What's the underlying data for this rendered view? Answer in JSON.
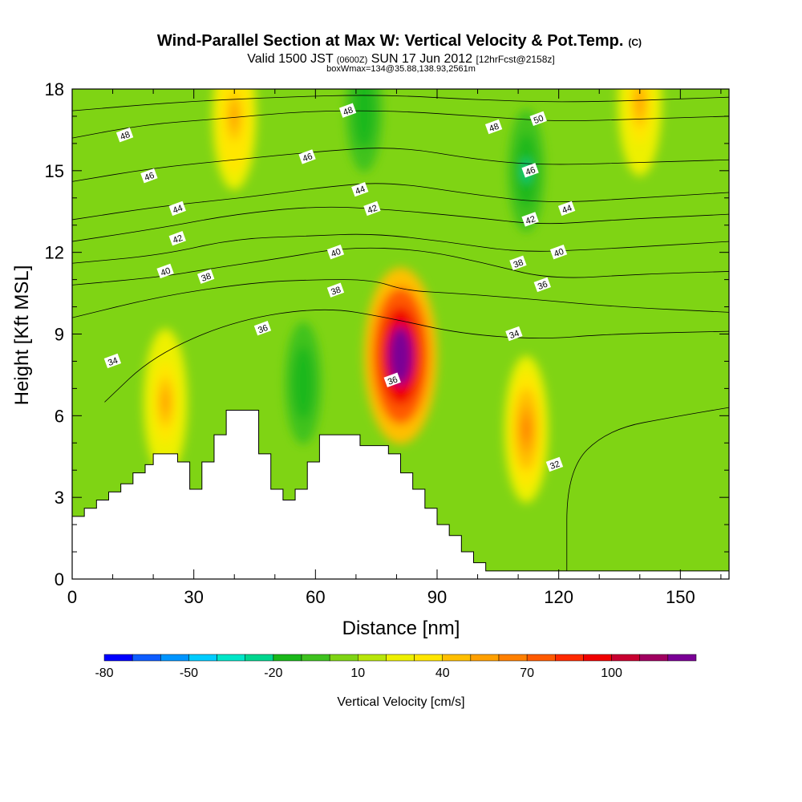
{
  "chart_data": {
    "type": "heatmap",
    "title": "Wind-Parallel Section at Max W: Vertical Velocity & Pot.Temp.",
    "title_mark": "(C)",
    "subtitle_parts": [
      "Valid 1500 JST",
      "(0600Z)",
      "SUN 17 Jun 2012",
      "[12hrFcst@2158z]"
    ],
    "subtitle2": "boxWmax=134@35.88,138.93,2561m",
    "xlabel": "Distance [nm]",
    "ylabel": "Height [Kft MSL]",
    "xlim": [
      0,
      162
    ],
    "ylim": [
      0,
      18
    ],
    "x_ticks": [
      "0",
      "30",
      "60",
      "90",
      "120",
      "150"
    ],
    "y_ticks": [
      "0",
      "3",
      "6",
      "9",
      "12",
      "15",
      "18"
    ],
    "colorbar": {
      "label": "Vertical Velocity [cm/s]",
      "tick_labels": [
        "-80",
        "-50",
        "-20",
        "10",
        "40",
        "70",
        "100"
      ],
      "colors": [
        "#0000ff",
        "#0d5cff",
        "#0095ff",
        "#00ccff",
        "#00e6c8",
        "#00d68f",
        "#1ab81a",
        "#3fc21f",
        "#7fd414",
        "#b8e60a",
        "#eef000",
        "#ffe600",
        "#ffbf00",
        "#ffa000",
        "#ff8000",
        "#ff5a00",
        "#ff2a00",
        "#f00000",
        "#c80030",
        "#a00060",
        "#7a0096"
      ]
    },
    "terrain": [
      [
        0,
        2.3
      ],
      [
        3,
        2.3
      ],
      [
        3,
        2.6
      ],
      [
        6,
        2.6
      ],
      [
        6,
        2.9
      ],
      [
        9,
        2.9
      ],
      [
        9,
        3.2
      ],
      [
        12,
        3.2
      ],
      [
        12,
        3.5
      ],
      [
        15,
        3.5
      ],
      [
        15,
        3.9
      ],
      [
        18,
        3.9
      ],
      [
        18,
        4.2
      ],
      [
        20,
        4.2
      ],
      [
        20,
        4.6
      ],
      [
        26,
        4.6
      ],
      [
        26,
        4.3
      ],
      [
        29,
        4.3
      ],
      [
        29,
        3.3
      ],
      [
        32,
        3.3
      ],
      [
        32,
        4.3
      ],
      [
        35,
        4.3
      ],
      [
        35,
        5.3
      ],
      [
        38,
        5.3
      ],
      [
        38,
        6.2
      ],
      [
        46,
        6.2
      ],
      [
        46,
        4.6
      ],
      [
        49,
        4.6
      ],
      [
        49,
        3.3
      ],
      [
        52,
        3.3
      ],
      [
        52,
        2.9
      ],
      [
        55,
        2.9
      ],
      [
        55,
        3.3
      ],
      [
        58,
        3.3
      ],
      [
        58,
        4.3
      ],
      [
        61,
        4.3
      ],
      [
        61,
        5.3
      ],
      [
        71,
        5.3
      ],
      [
        71,
        4.9
      ],
      [
        78,
        4.9
      ],
      [
        78,
        4.6
      ],
      [
        81,
        4.6
      ],
      [
        81,
        3.9
      ],
      [
        84,
        3.9
      ],
      [
        84,
        3.3
      ],
      [
        87,
        3.3
      ],
      [
        87,
        2.6
      ],
      [
        90,
        2.6
      ],
      [
        90,
        2.0
      ],
      [
        93,
        2.0
      ],
      [
        93,
        1.6
      ],
      [
        96,
        1.6
      ],
      [
        96,
        1.0
      ],
      [
        99,
        1.0
      ],
      [
        99,
        0.6
      ],
      [
        102,
        0.6
      ],
      [
        102,
        0.3
      ],
      [
        162,
        0.3
      ]
    ],
    "w_field_note": "vertical velocity shaded",
    "w_features": [
      {
        "x": 81,
        "y": 8.2,
        "max": 134
      },
      {
        "x": 112,
        "y": 5.5,
        "max": 55
      },
      {
        "x": 72,
        "y": 17.2,
        "max": -30
      },
      {
        "x": 112,
        "y": 15.0,
        "max": -35
      },
      {
        "x": 57,
        "y": 7.2,
        "max": -30
      },
      {
        "x": 23,
        "y": 6.5,
        "max": 40
      },
      {
        "x": 40,
        "y": 17.0,
        "max": 45
      },
      {
        "x": 140,
        "y": 17.5,
        "max": 40
      }
    ],
    "theta_contours": [
      {
        "label": "32",
        "points": [
          [
            122,
            0.3
          ],
          [
            122,
            4.0
          ],
          [
            132,
            5.5
          ],
          [
            150,
            6.0
          ],
          [
            162,
            6.3
          ]
        ]
      },
      {
        "label": "34",
        "points": [
          [
            8,
            6.5
          ],
          [
            20,
            8.2
          ],
          [
            40,
            9.5
          ],
          [
            62,
            10.0
          ],
          [
            78,
            9.6
          ],
          [
            96,
            9.0
          ],
          [
            116,
            8.8
          ],
          [
            132,
            9.0
          ],
          [
            162,
            9.1
          ]
        ]
      },
      {
        "label": "36",
        "points": [
          [
            0,
            9.6
          ],
          [
            22,
            10.4
          ],
          [
            45,
            10.9
          ],
          [
            60,
            11.0
          ],
          [
            74,
            11.0
          ],
          [
            82,
            10.6
          ],
          [
            94,
            10.5
          ],
          [
            112,
            10.3
          ],
          [
            134,
            10.0
          ],
          [
            162,
            9.8
          ]
        ]
      },
      {
        "label": "38",
        "points": [
          [
            0,
            10.8
          ],
          [
            22,
            11.1
          ],
          [
            34,
            11.4
          ],
          [
            52,
            11.8
          ],
          [
            68,
            12.2
          ],
          [
            86,
            12.1
          ],
          [
            102,
            11.6
          ],
          [
            118,
            11.0
          ],
          [
            140,
            11.2
          ],
          [
            162,
            11.3
          ]
        ]
      },
      {
        "label": "40",
        "points": [
          [
            0,
            11.6
          ],
          [
            22,
            11.9
          ],
          [
            40,
            12.5
          ],
          [
            58,
            12.6
          ],
          [
            74,
            12.7
          ],
          [
            92,
            12.4
          ],
          [
            110,
            12.0
          ],
          [
            128,
            12.1
          ],
          [
            162,
            12.4
          ]
        ]
      },
      {
        "label": "42",
        "points": [
          [
            0,
            12.4
          ],
          [
            22,
            12.9
          ],
          [
            40,
            13.4
          ],
          [
            60,
            13.7
          ],
          [
            76,
            13.6
          ],
          [
            98,
            13.3
          ],
          [
            116,
            13.0
          ],
          [
            134,
            13.2
          ],
          [
            162,
            13.4
          ]
        ]
      },
      {
        "label": "44",
        "points": [
          [
            0,
            13.2
          ],
          [
            22,
            13.7
          ],
          [
            42,
            14.0
          ],
          [
            62,
            14.4
          ],
          [
            78,
            14.6
          ],
          [
            100,
            14.1
          ],
          [
            118,
            13.8
          ],
          [
            140,
            14.0
          ],
          [
            162,
            14.2
          ]
        ]
      },
      {
        "label": "46",
        "points": [
          [
            0,
            14.6
          ],
          [
            20,
            15.1
          ],
          [
            40,
            15.4
          ],
          [
            60,
            15.7
          ],
          [
            80,
            15.9
          ],
          [
            100,
            15.4
          ],
          [
            116,
            15.2
          ],
          [
            140,
            15.3
          ],
          [
            162,
            15.4
          ]
        ]
      },
      {
        "label": "48",
        "points": [
          [
            0,
            16.2
          ],
          [
            18,
            16.7
          ],
          [
            36,
            16.9
          ],
          [
            58,
            17.2
          ],
          [
            80,
            17.2
          ],
          [
            100,
            17.0
          ],
          [
            120,
            16.8
          ],
          [
            140,
            16.9
          ],
          [
            162,
            17.0
          ]
        ]
      },
      {
        "label": "50",
        "points": [
          [
            0,
            17.2
          ],
          [
            24,
            17.5
          ],
          [
            50,
            17.7
          ],
          [
            76,
            17.8
          ],
          [
            100,
            17.6
          ],
          [
            124,
            17.5
          ],
          [
            162,
            17.7
          ]
        ]
      }
    ],
    "contour_labels": [
      {
        "text": "48",
        "x": 13,
        "y": 16.3
      },
      {
        "text": "46",
        "x": 19,
        "y": 14.8
      },
      {
        "text": "44",
        "x": 26,
        "y": 13.6
      },
      {
        "text": "42",
        "x": 26,
        "y": 12.5
      },
      {
        "text": "40",
        "x": 23,
        "y": 11.3
      },
      {
        "text": "38",
        "x": 33,
        "y": 11.1
      },
      {
        "text": "36",
        "x": 47,
        "y": 9.2
      },
      {
        "text": "34",
        "x": 10,
        "y": 8.0
      },
      {
        "text": "48",
        "x": 68,
        "y": 17.2
      },
      {
        "text": "46",
        "x": 58,
        "y": 15.5
      },
      {
        "text": "44",
        "x": 71,
        "y": 14.3
      },
      {
        "text": "42",
        "x": 74,
        "y": 13.6
      },
      {
        "text": "40",
        "x": 65,
        "y": 12.0
      },
      {
        "text": "38",
        "x": 65,
        "y": 10.6
      },
      {
        "text": "36",
        "x": 79,
        "y": 7.3
      },
      {
        "text": "48",
        "x": 104,
        "y": 16.6
      },
      {
        "text": "50",
        "x": 115,
        "y": 16.9
      },
      {
        "text": "46",
        "x": 113,
        "y": 15.0
      },
      {
        "text": "44",
        "x": 122,
        "y": 13.6
      },
      {
        "text": "42",
        "x": 113,
        "y": 13.2
      },
      {
        "text": "40",
        "x": 120,
        "y": 12.0
      },
      {
        "text": "38",
        "x": 110,
        "y": 11.6
      },
      {
        "text": "36",
        "x": 116,
        "y": 10.8
      },
      {
        "text": "34",
        "x": 109,
        "y": 9.0
      },
      {
        "text": "32",
        "x": 119,
        "y": 4.2
      }
    ]
  }
}
